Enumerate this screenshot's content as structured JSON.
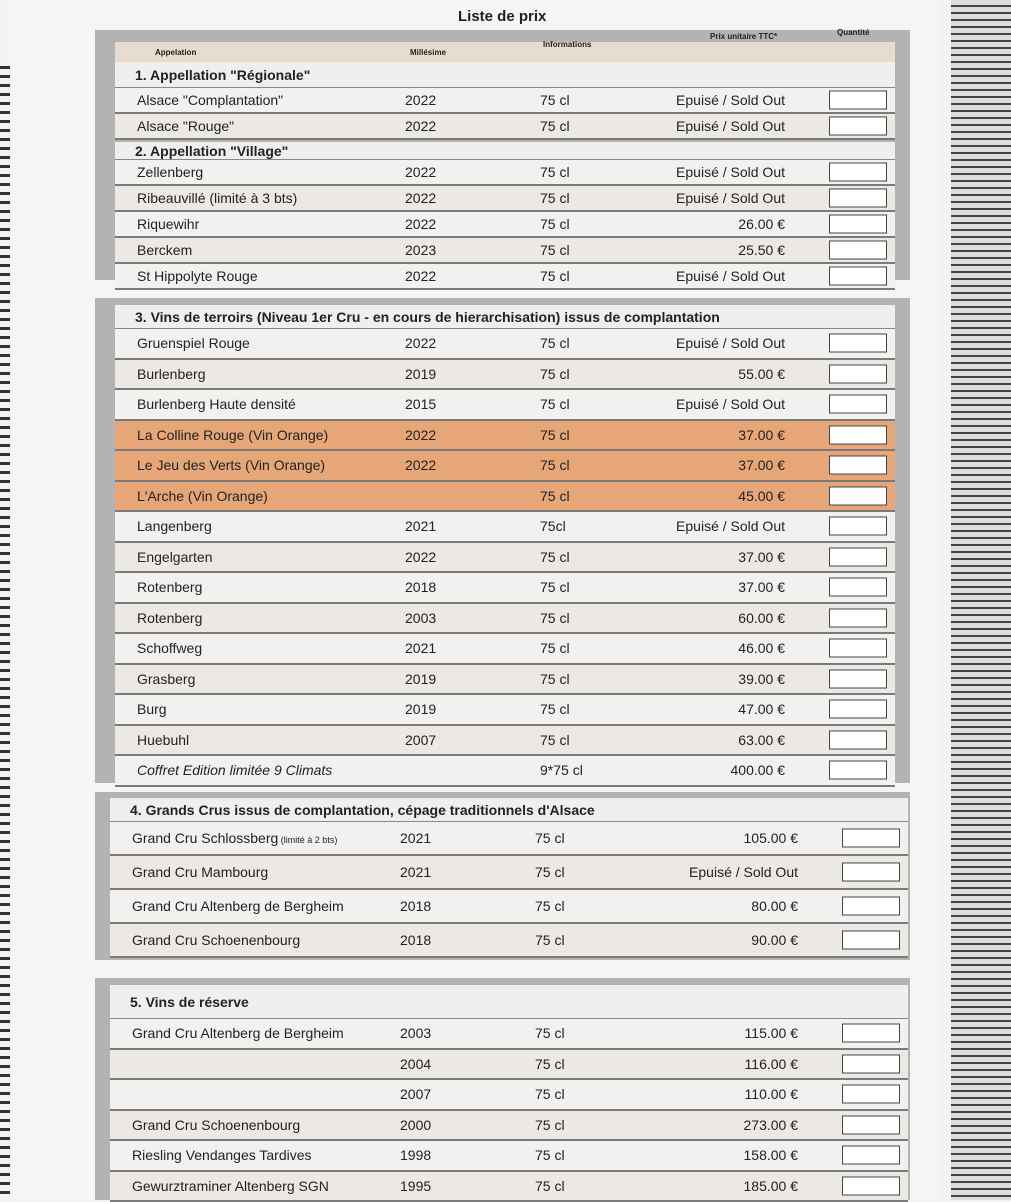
{
  "title": "Liste de prix",
  "columns": {
    "appellation": "Appelation",
    "millesime": "Millésime",
    "informations": "Informations",
    "prix": "Prix unitaire TTC*",
    "quantite": "Quantité"
  },
  "colors": {
    "panel": "#b3b3b3",
    "row_light": "#f3f1ef",
    "row_beige": "#ece8e3",
    "row_orange": "#e7a677",
    "header": "#e7dccd"
  },
  "sections": [
    {
      "title": "1. Appellation \"Régionale\"",
      "rows": [
        {
          "name": "Alsace \"Complantation\"",
          "year": "2022",
          "info": "75 cl",
          "price": "Epuisé / Sold Out"
        },
        {
          "name": "Alsace \"Rouge\"",
          "year": "2022",
          "info": "75 cl",
          "price": "Epuisé / Sold Out"
        }
      ]
    },
    {
      "title": "2. Appellation \"Village\"",
      "rows": [
        {
          "name": "Zellenberg",
          "year": "2022",
          "info": "75 cl",
          "price": "Epuisé / Sold Out"
        },
        {
          "name": "Ribeauvillé  (limité à 3 bts)",
          "year": "2022",
          "info": "75 cl",
          "price": "Epuisé / Sold Out"
        },
        {
          "name": "Riquewihr",
          "year": "2022",
          "info": "75 cl",
          "price": "26.00 €"
        },
        {
          "name": "Berckem",
          "year": "2023",
          "info": "75 cl",
          "price": "25.50 €"
        },
        {
          "name": "St Hippolyte Rouge",
          "year": "2022",
          "info": "75 cl",
          "price": "Epuisé / Sold Out"
        }
      ]
    },
    {
      "title": "3. Vins de terroirs  (Niveau 1er Cru - en cours de hierarchisation) issus de complantation",
      "rows": [
        {
          "name": "Gruenspiel Rouge",
          "year": "2022",
          "info": "75 cl",
          "price": "Epuisé / Sold Out"
        },
        {
          "name": "Burlenberg",
          "year": "2019",
          "info": "75 cl",
          "price": "55.00 €"
        },
        {
          "name": "Burlenberg Haute densité",
          "year": "2015",
          "info": "75 cl",
          "price": "Epuisé / Sold Out"
        },
        {
          "name": "La Colline Rouge (Vin Orange)",
          "year": "2022",
          "info": "75 cl",
          "price": "37.00 €",
          "highlight": true
        },
        {
          "name": "Le Jeu des Verts (Vin Orange)",
          "year": "2022",
          "info": "75 cl",
          "price": "37.00 €",
          "highlight": true
        },
        {
          "name": "L'Arche (Vin Orange)",
          "year": "",
          "info": "75 cl",
          "price": "45.00 €",
          "highlight": true
        },
        {
          "name": "Langenberg",
          "year": "2021",
          "info": "75cl",
          "price": "Epuisé / Sold Out"
        },
        {
          "name": "Engelgarten",
          "year": "2022",
          "info": "75 cl",
          "price": "37.00 €"
        },
        {
          "name": "Rotenberg",
          "year": "2018",
          "info": "75 cl",
          "price": "37.00 €"
        },
        {
          "name": "Rotenberg",
          "year": "2003",
          "info": "75 cl",
          "price": "60.00 €"
        },
        {
          "name": "Schoffweg",
          "year": "2021",
          "info": "75 cl",
          "price": "46.00 €"
        },
        {
          "name": "Grasberg",
          "year": "2019",
          "info": "75 cl",
          "price": "39.00 €"
        },
        {
          "name": "Burg",
          "year": "2019",
          "info": "75 cl",
          "price": "47.00 €"
        },
        {
          "name": "Huebuhl",
          "year": "2007",
          "info": "75 cl",
          "price": "63.00 €"
        },
        {
          "name": "Coffret Edition limitée 9 Climats",
          "year": "",
          "info": "9*75 cl",
          "price": "400.00 €",
          "italic": true
        }
      ]
    },
    {
      "title": "4. Grands Crus issus de complantation, cépage traditionnels d'Alsace",
      "rows": [
        {
          "name": "Grand Cru Schlossberg",
          "note": "(limité à 2 bts)",
          "year": "2021",
          "info": "75 cl",
          "price": "105.00 €"
        },
        {
          "name": "Grand Cru Mambourg",
          "year": "2021",
          "info": "75 cl",
          "price": "Epuisé / Sold Out"
        },
        {
          "name": "Grand Cru Altenberg de Bergheim",
          "year": "2018",
          "info": "75 cl",
          "price": "80.00 €"
        },
        {
          "name": "Grand Cru Schoenenbourg",
          "year": "2018",
          "info": "75 cl",
          "price": "90.00 €"
        }
      ]
    },
    {
      "title": "5. Vins de réserve",
      "rows": [
        {
          "name": "Grand Cru Altenberg de Bergheim",
          "year": "2003",
          "info": "75 cl",
          "price": "115.00 €"
        },
        {
          "name": "",
          "year": "2004",
          "info": "75 cl",
          "price": "116.00 €"
        },
        {
          "name": "",
          "year": "2007",
          "info": "75 cl",
          "price": "110.00 €"
        },
        {
          "name": "Grand Cru Schoenenbourg",
          "year": "2000",
          "info": "75 cl",
          "price": "273.00 €"
        },
        {
          "name": "Riesling Vendanges Tardives",
          "year": "1998",
          "info": "75 cl",
          "price": "158.00 €"
        },
        {
          "name": "Gewurztraminer Altenberg SGN",
          "year": "1995",
          "info": "75 cl",
          "price": "185.00 €"
        }
      ]
    }
  ]
}
